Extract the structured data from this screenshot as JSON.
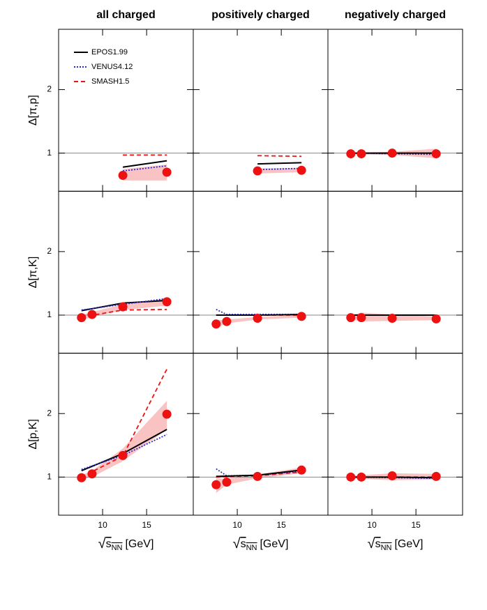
{
  "chart_data": [
    {
      "type": "line",
      "title": "all charged",
      "ylabel": "Δ[π,p]",
      "xlim": [
        5,
        20.3
      ],
      "ylim": [
        0.4,
        2.95
      ],
      "xticks": [
        10,
        15
      ],
      "yticks": [
        1,
        2
      ],
      "ytick_labels": true,
      "xtick_labels": false,
      "hline": 1,
      "legend": "upper left",
      "band": {
        "x": [
          12.3,
          17.3
        ],
        "lower": [
          0.57,
          0.57
        ],
        "upper": [
          0.75,
          0.82
        ],
        "color": "#f9c3c3"
      },
      "series": [
        {
          "name": "EPOS1.99",
          "color": "#000000",
          "dash": "solid",
          "x": [
            12.3,
            17.3
          ],
          "values": [
            0.78,
            0.88
          ]
        },
        {
          "name": "VENUS4.12",
          "color": "#2a2ad0",
          "dash": "dotted",
          "x": [
            12.3,
            17.3
          ],
          "values": [
            0.72,
            0.8
          ]
        },
        {
          "name": "SMASH1.5",
          "color": "#ee1111",
          "dash": "dashed",
          "x": [
            12.3,
            17.3
          ],
          "values": [
            0.97,
            0.97
          ]
        },
        {
          "color": "#ee1111",
          "marker": "dot",
          "x": [
            12.3,
            17.3
          ],
          "values": [
            0.65,
            0.7
          ]
        }
      ]
    },
    {
      "type": "line",
      "title": "positively charged",
      "xlim": [
        5,
        20.3
      ],
      "ylim": [
        0.4,
        2.95
      ],
      "xticks": [
        10,
        15
      ],
      "yticks": [
        1,
        2
      ],
      "ytick_labels": false,
      "xtick_labels": false,
      "hline": 1,
      "band": {
        "x": [
          12.3,
          17.3
        ],
        "lower": [
          0.68,
          0.7
        ],
        "upper": [
          0.76,
          0.77
        ],
        "color": "#f9c3c3"
      },
      "series": [
        {
          "color": "#000000",
          "dash": "solid",
          "x": [
            12.3,
            17.3
          ],
          "values": [
            0.83,
            0.85
          ]
        },
        {
          "color": "#2a2ad0",
          "dash": "dotted",
          "x": [
            12.3,
            17.3
          ],
          "values": [
            0.74,
            0.76
          ]
        },
        {
          "color": "#ee1111",
          "dash": "dashed",
          "x": [
            12.3,
            17.3
          ],
          "values": [
            0.96,
            0.95
          ]
        },
        {
          "color": "#ee1111",
          "marker": "dot",
          "x": [
            12.3,
            17.3
          ],
          "values": [
            0.72,
            0.73
          ]
        }
      ]
    },
    {
      "type": "line",
      "title": "negatively charged",
      "xlim": [
        5,
        20.3
      ],
      "ylim": [
        0.4,
        2.95
      ],
      "xticks": [
        10,
        15
      ],
      "yticks": [
        1,
        2
      ],
      "ytick_labels": false,
      "xtick_labels": false,
      "hline": 1,
      "band": {
        "x": [
          7.6,
          8.8,
          12.3,
          17.3
        ],
        "lower": [
          0.98,
          0.98,
          0.97,
          0.92
        ],
        "upper": [
          1.0,
          1.01,
          1.02,
          1.07
        ],
        "color": "#f9c3c3"
      },
      "series": [
        {
          "color": "#ee1111",
          "dash": "dashed",
          "x": [
            7.6,
            8.8,
            12.3,
            17.3
          ],
          "values": [
            1.0,
            1.0,
            1.0,
            1.0
          ]
        },
        {
          "color": "#2a2ad0",
          "dash": "dotted",
          "x": [
            7.6,
            8.8,
            12.3,
            17.3
          ],
          "values": [
            1.0,
            1.0,
            0.99,
            0.98
          ]
        },
        {
          "color": "#000000",
          "dash": "solid",
          "x": [
            7.6,
            8.8,
            12.3,
            17.3
          ],
          "values": [
            1.0,
            1.0,
            1.0,
            1.0
          ]
        },
        {
          "color": "#ee1111",
          "marker": "dot",
          "x": [
            7.6,
            8.8,
            12.3,
            17.3
          ],
          "values": [
            0.99,
            0.99,
            1.0,
            0.99
          ]
        }
      ]
    },
    {
      "type": "line",
      "ylabel": "Δ[π,K]",
      "xlim": [
        5,
        20.3
      ],
      "ylim": [
        0.4,
        2.95
      ],
      "xticks": [
        10,
        15
      ],
      "yticks": [
        1,
        2
      ],
      "ytick_labels": true,
      "xtick_labels": false,
      "hline": 1,
      "band": {
        "x": [
          7.6,
          8.8,
          12.3,
          17.3
        ],
        "lower": [
          0.92,
          0.97,
          1.08,
          1.15
        ],
        "upper": [
          1.0,
          1.05,
          1.17,
          1.26
        ],
        "color": "#f9c3c3"
      },
      "series": [
        {
          "color": "#000000",
          "dash": "solid",
          "x": [
            7.6,
            12.3,
            17.3
          ],
          "values": [
            1.07,
            1.19,
            1.23
          ]
        },
        {
          "color": "#2a2ad0",
          "dash": "dotted",
          "x": [
            7.6,
            12.3,
            17.3
          ],
          "values": [
            1.08,
            1.17,
            1.26
          ]
        },
        {
          "color": "#ee1111",
          "dash": "dashed",
          "x": [
            7.6,
            12.3,
            17.3
          ],
          "values": [
            0.97,
            1.08,
            1.09
          ]
        },
        {
          "color": "#ee1111",
          "marker": "dot",
          "x": [
            7.6,
            8.8,
            12.3,
            17.3
          ],
          "values": [
            0.96,
            1.01,
            1.13,
            1.21
          ]
        }
      ]
    },
    {
      "type": "line",
      "xlim": [
        5,
        20.3
      ],
      "ylim": [
        0.4,
        2.95
      ],
      "xticks": [
        10,
        15
      ],
      "yticks": [
        1,
        2
      ],
      "ytick_labels": false,
      "xtick_labels": false,
      "hline": 1,
      "band": {
        "x": [
          7.6,
          8.8,
          12.3,
          17.3
        ],
        "lower": [
          0.8,
          0.87,
          0.93,
          0.96
        ],
        "upper": [
          0.92,
          0.93,
          0.97,
          1.0
        ],
        "color": "#f9c3c3"
      },
      "series": [
        {
          "color": "#ee1111",
          "dash": "dashed",
          "x": [
            7.6,
            12.3,
            17.3
          ],
          "values": [
            1.0,
            1.0,
            1.0
          ]
        },
        {
          "color": "#2a2ad0",
          "dash": "dotted",
          "x": [
            7.6,
            8.8,
            12.3,
            17.3
          ],
          "values": [
            1.09,
            1.01,
            1.01,
            1.01
          ]
        },
        {
          "color": "#000000",
          "dash": "solid",
          "x": [
            7.6,
            12.3,
            17.3
          ],
          "values": [
            1.0,
            1.0,
            1.01
          ]
        },
        {
          "color": "#ee1111",
          "marker": "dot",
          "x": [
            7.6,
            8.8,
            12.3,
            17.3
          ],
          "values": [
            0.86,
            0.9,
            0.95,
            0.98
          ]
        }
      ]
    },
    {
      "type": "line",
      "xlim": [
        5,
        20.3
      ],
      "ylim": [
        0.4,
        2.95
      ],
      "xticks": [
        10,
        15
      ],
      "yticks": [
        1,
        2
      ],
      "ytick_labels": false,
      "xtick_labels": false,
      "hline": 1,
      "band": {
        "x": [
          7.6,
          8.8,
          12.3,
          17.3
        ],
        "lower": [
          0.93,
          0.9,
          0.91,
          0.92
        ],
        "upper": [
          1.0,
          1.04,
          1.01,
          0.98
        ],
        "color": "#f9c3c3"
      },
      "series": [
        {
          "color": "#ee1111",
          "dash": "dashed",
          "x": [
            7.6,
            12.3,
            17.3
          ],
          "values": [
            1.0,
            1.0,
            1.0
          ]
        },
        {
          "color": "#2a2ad0",
          "dash": "dotted",
          "x": [
            7.6,
            12.3,
            17.3
          ],
          "values": [
            1.0,
            1.0,
            1.0
          ]
        },
        {
          "color": "#000000",
          "dash": "solid",
          "x": [
            7.6,
            12.3,
            17.3
          ],
          "values": [
            1.0,
            1.0,
            1.0
          ]
        },
        {
          "color": "#ee1111",
          "marker": "dot",
          "x": [
            7.6,
            8.8,
            12.3,
            17.3
          ],
          "values": [
            0.96,
            0.96,
            0.95,
            0.94
          ]
        }
      ]
    },
    {
      "type": "line",
      "ylabel": "Δ[p,K]",
      "xlabel": [
        "√",
        "s",
        "NN",
        "[GeV]"
      ],
      "xlim": [
        5,
        20.3
      ],
      "ylim": [
        0.4,
        2.95
      ],
      "xticks": [
        10,
        15
      ],
      "yticks": [
        1,
        2
      ],
      "ytick_labels": true,
      "xtick_labels": true,
      "hline": 1,
      "band": {
        "x": [
          7.6,
          8.8,
          12.3,
          17.3
        ],
        "lower": [
          0.96,
          1.0,
          1.25,
          1.75
        ],
        "upper": [
          1.03,
          1.1,
          1.45,
          2.2
        ],
        "color": "#f9c3c3"
      },
      "series": [
        {
          "color": "#000000",
          "dash": "solid",
          "x": [
            7.6,
            12.3,
            17.3
          ],
          "values": [
            1.1,
            1.37,
            1.75
          ]
        },
        {
          "color": "#2a2ad0",
          "dash": "dotted",
          "x": [
            7.6,
            12.3,
            17.3
          ],
          "values": [
            1.12,
            1.34,
            1.67
          ]
        },
        {
          "color": "#ee1111",
          "dash": "dashed",
          "x": [
            7.6,
            12.3,
            17.3
          ],
          "values": [
            1.0,
            1.33,
            2.7
          ]
        },
        {
          "color": "#ee1111",
          "marker": "dot",
          "x": [
            7.6,
            8.8,
            12.3,
            17.3
          ],
          "values": [
            0.99,
            1.05,
            1.34,
            1.99
          ]
        }
      ]
    },
    {
      "type": "line",
      "xlabel": [
        "√",
        "s",
        "NN",
        "[GeV]"
      ],
      "xlim": [
        5,
        20.3
      ],
      "ylim": [
        0.4,
        2.95
      ],
      "xticks": [
        10,
        15
      ],
      "yticks": [
        1,
        2
      ],
      "ytick_labels": false,
      "xtick_labels": true,
      "hline": 1,
      "band": {
        "x": [
          7.6,
          8.8,
          12.3,
          17.3
        ],
        "lower": [
          0.75,
          0.88,
          0.98,
          1.06
        ],
        "upper": [
          0.98,
          0.97,
          1.04,
          1.15
        ],
        "color": "#f9c3c3"
      },
      "series": [
        {
          "color": "#ee1111",
          "dash": "dashed",
          "x": [
            7.6,
            12.3,
            17.3
          ],
          "values": [
            1.0,
            1.02,
            1.08
          ]
        },
        {
          "color": "#2a2ad0",
          "dash": "dotted",
          "x": [
            7.6,
            8.8,
            12.3,
            17.3
          ],
          "values": [
            1.13,
            1.02,
            1.03,
            1.09
          ]
        },
        {
          "color": "#000000",
          "dash": "solid",
          "x": [
            7.6,
            12.3,
            17.3
          ],
          "values": [
            1.01,
            1.03,
            1.11
          ]
        },
        {
          "color": "#ee1111",
          "marker": "dot",
          "x": [
            7.6,
            8.8,
            12.3,
            17.3
          ],
          "values": [
            0.88,
            0.92,
            1.01,
            1.11
          ]
        }
      ]
    },
    {
      "type": "line",
      "xlabel": [
        "√",
        "s",
        "NN",
        "[GeV]"
      ],
      "xlim": [
        5,
        20.3
      ],
      "ylim": [
        0.4,
        2.95
      ],
      "xticks": [
        10,
        15
      ],
      "yticks": [
        1,
        2
      ],
      "ytick_labels": false,
      "xtick_labels": true,
      "hline": 1,
      "band": {
        "x": [
          7.6,
          8.8,
          12.3,
          17.3
        ],
        "lower": [
          0.98,
          0.97,
          0.95,
          0.96
        ],
        "upper": [
          1.02,
          1.03,
          1.06,
          1.05
        ],
        "color": "#f9c3c3"
      },
      "series": [
        {
          "color": "#ee1111",
          "dash": "dashed",
          "x": [
            7.6,
            12.3,
            17.3
          ],
          "values": [
            1.0,
            1.0,
            1.0
          ]
        },
        {
          "color": "#2a2ad0",
          "dash": "dotted",
          "x": [
            7.6,
            12.3,
            17.3
          ],
          "values": [
            1.0,
            0.99,
            0.98
          ]
        },
        {
          "color": "#000000",
          "dash": "solid",
          "x": [
            7.6,
            12.3,
            17.3
          ],
          "values": [
            1.0,
            1.0,
            0.99
          ]
        },
        {
          "color": "#ee1111",
          "marker": "dot",
          "x": [
            7.6,
            8.8,
            12.3,
            17.3
          ],
          "values": [
            1.0,
            1.0,
            1.02,
            1.01
          ]
        }
      ]
    }
  ]
}
